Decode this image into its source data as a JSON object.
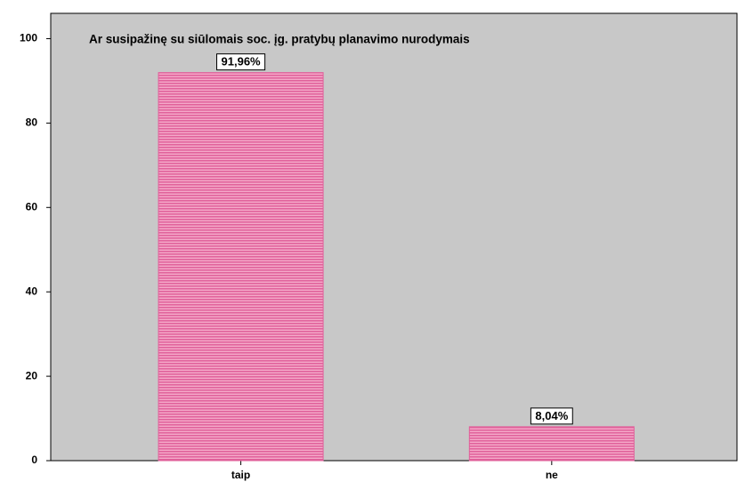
{
  "chart_data": {
    "type": "bar",
    "title": "Ar susipažinę su siūlomais soc. įg. pratybų planavimo nurodymais",
    "categories": [
      "taip",
      "ne"
    ],
    "values": [
      91.96,
      8.04
    ],
    "value_labels": [
      "91,96%",
      "8,04%"
    ],
    "color": "#e0609a",
    "ylim": [
      0,
      106
    ],
    "yticks": [
      0,
      20,
      40,
      60,
      80,
      100
    ]
  }
}
